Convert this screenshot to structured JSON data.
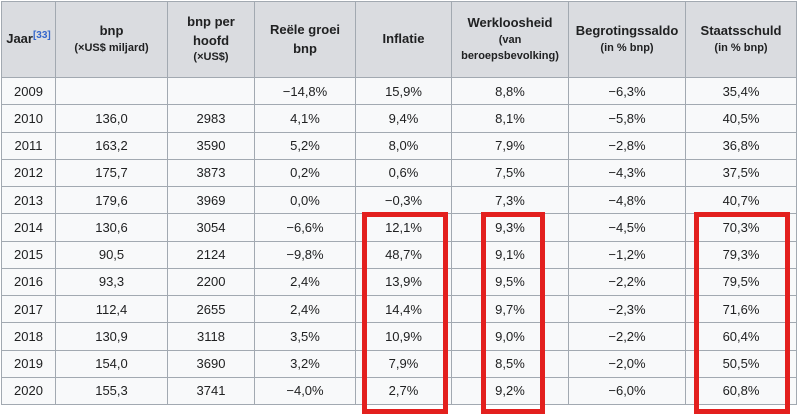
{
  "colors": {
    "highlight_red": "#e3201e",
    "border_gray": "#a2a9b1",
    "header_bg": "#dadce0",
    "cell_bg": "#f8f9fa",
    "link_blue": "#3366cc",
    "text": "#202122"
  },
  "table": {
    "columns": [
      {
        "id": "jaar",
        "label": "Jaar",
        "sup": "[33]",
        "sub": ""
      },
      {
        "id": "bnp",
        "label": "bnp",
        "sub": "(×US$ miljard)"
      },
      {
        "id": "bnp-per-hoofd",
        "label": "bnp per hoofd",
        "sub": "(×US$)"
      },
      {
        "id": "reele-groei-bnp",
        "label": "Reële groei bnp",
        "sub": ""
      },
      {
        "id": "inflatie",
        "label": "Inflatie",
        "sub": ""
      },
      {
        "id": "werkloosheid",
        "label": "Werkloosheid",
        "sub": "(van beroepsbevolking)"
      },
      {
        "id": "begrotingssaldo",
        "label": "Begrotingssaldo",
        "sub": "(in % bnp)"
      },
      {
        "id": "staatsschuld",
        "label": "Staatsschuld",
        "sub": "(in % bnp)"
      }
    ],
    "rows": [
      [
        "2009",
        "",
        "",
        "−14,8%",
        "15,9%",
        "8,8%",
        "−6,3%",
        "35,4%"
      ],
      [
        "2010",
        "136,0",
        "2983",
        "4,1%",
        "9,4%",
        "8,1%",
        "−5,8%",
        "40,5%"
      ],
      [
        "2011",
        "163,2",
        "3590",
        "5,2%",
        "8,0%",
        "7,9%",
        "−2,8%",
        "36,8%"
      ],
      [
        "2012",
        "175,7",
        "3873",
        "0,2%",
        "0,6%",
        "7,5%",
        "−4,3%",
        "37,5%"
      ],
      [
        "2013",
        "179,6",
        "3969",
        "0,0%",
        "−0,3%",
        "7,3%",
        "−4,8%",
        "40,7%"
      ],
      [
        "2014",
        "130,6",
        "3054",
        "−6,6%",
        "12,1%",
        "9,3%",
        "−4,5%",
        "70,3%"
      ],
      [
        "2015",
        "90,5",
        "2124",
        "−9,8%",
        "48,7%",
        "9,1%",
        "−1,2%",
        "79,3%"
      ],
      [
        "2016",
        "93,3",
        "2200",
        "2,4%",
        "13,9%",
        "9,5%",
        "−2,2%",
        "79,5%"
      ],
      [
        "2017",
        "112,4",
        "2655",
        "2,4%",
        "14,4%",
        "9,7%",
        "−2,3%",
        "71,6%"
      ],
      [
        "2018",
        "130,9",
        "3118",
        "3,5%",
        "10,9%",
        "9,0%",
        "−2,2%",
        "60,4%"
      ],
      [
        "2019",
        "154,0",
        "3690",
        "3,2%",
        "7,9%",
        "8,5%",
        "−2,0%",
        "50,5%"
      ],
      [
        "2020",
        "155,3",
        "3741",
        "−4,0%",
        "2,7%",
        "9,2%",
        "−6,0%",
        "60,8%"
      ]
    ],
    "highlighted_columns": [
      "inflatie",
      "werkloosheid",
      "staatsschuld"
    ],
    "highlighted_year_range": "2014–2020"
  }
}
